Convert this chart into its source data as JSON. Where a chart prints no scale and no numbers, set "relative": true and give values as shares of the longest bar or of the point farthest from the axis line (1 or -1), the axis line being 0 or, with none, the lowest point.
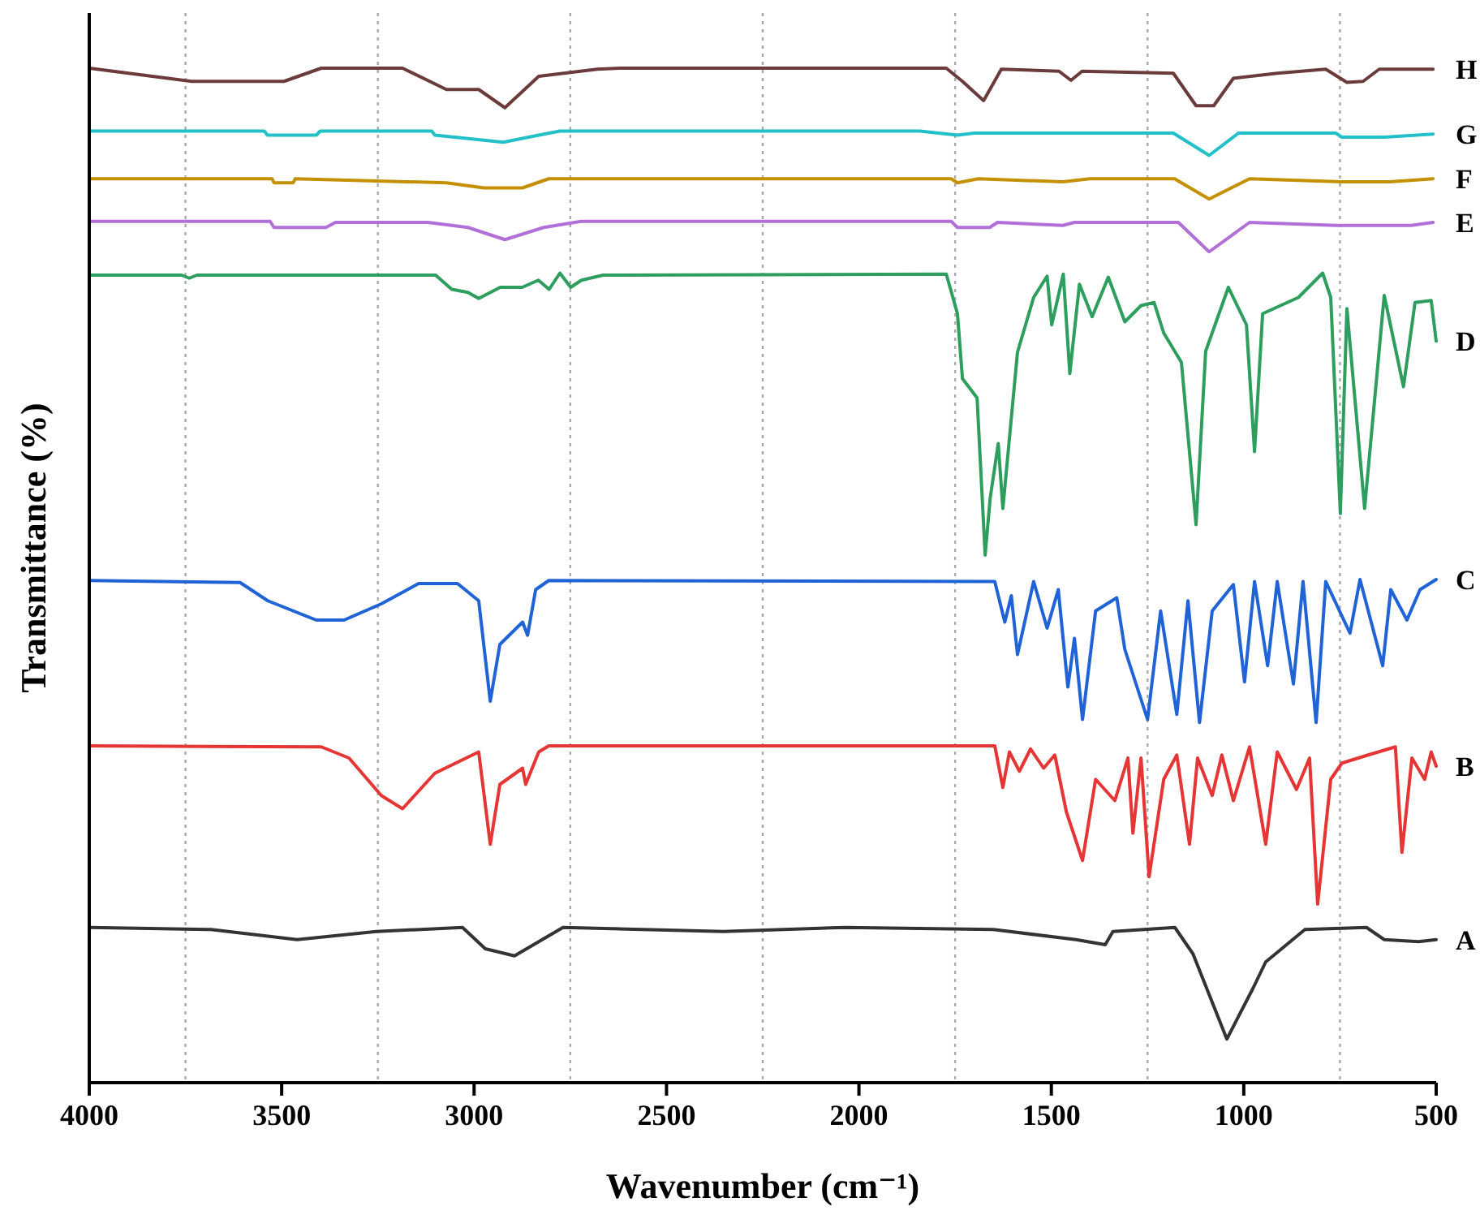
{
  "chart_data": {
    "type": "line",
    "relative": true,
    "xlabel": "Wavenumber (cm⁻¹)",
    "ylabel": "Transmittance (%)",
    "xlim": [
      4000,
      500
    ],
    "xticks": [
      4000,
      3500,
      3000,
      2500,
      2000,
      1500,
      1000,
      500
    ],
    "grid": false,
    "legend": false,
    "line_style": "solid",
    "ref_lines": [
      {
        "axis": "x",
        "value": 3750,
        "color": "#aaaaaa",
        "line_style": "dotted"
      },
      {
        "axis": "x",
        "value": 3250,
        "color": "#aaaaaa",
        "line_style": "dotted"
      },
      {
        "axis": "x",
        "value": 2750,
        "color": "#aaaaaa",
        "line_style": "dotted"
      },
      {
        "axis": "x",
        "value": 2250,
        "color": "#aaaaaa",
        "line_style": "dotted"
      },
      {
        "axis": "x",
        "value": 1750,
        "color": "#aaaaaa",
        "line_style": "dotted"
      },
      {
        "axis": "x",
        "value": 1250,
        "color": "#aaaaaa",
        "line_style": "dotted"
      },
      {
        "axis": "x",
        "value": 750,
        "color": "#aaaaaa",
        "line_style": "dotted"
      }
    ],
    "series": [
      {
        "name": "H",
        "color": "#6b3b3b",
        "x": [
          4000,
          3734,
          3494,
          3397,
          3186,
          3072,
          2988,
          2920,
          2832,
          2680,
          2621,
          1773,
          1731,
          1676,
          1630,
          1480,
          1449,
          1420,
          1183,
          1124,
          1078,
          1027,
          913,
          787,
          732,
          690,
          648,
          508
        ],
        "values": [
          1.0,
          0.987,
          0.987,
          1.0,
          1.0,
          0.979,
          0.979,
          0.961,
          0.992,
          0.999,
          1.0,
          1.0,
          0.987,
          0.968,
          0.999,
          0.997,
          0.988,
          0.997,
          0.995,
          0.963,
          0.963,
          0.99,
          0.995,
          0.999,
          0.986,
          0.987,
          0.999,
          0.999
        ]
      },
      {
        "name": "G",
        "color": "#22c0c8",
        "x": [
          4000,
          3545,
          3537,
          3410,
          3400,
          3110,
          3102,
          2924,
          2832,
          2777,
          1842,
          1744,
          1700,
          1183,
          1090,
          1014,
          761,
          745,
          635,
          508
        ],
        "values": [
          0.938,
          0.938,
          0.934,
          0.934,
          0.938,
          0.938,
          0.934,
          0.927,
          0.934,
          0.938,
          0.938,
          0.934,
          0.936,
          0.936,
          0.914,
          0.936,
          0.936,
          0.932,
          0.932,
          0.935
        ]
      },
      {
        "name": "F",
        "color": "#c49000",
        "x": [
          4000,
          3525,
          3520,
          3470,
          3465,
          3072,
          2975,
          2874,
          2806,
          1760,
          1744,
          1690,
          1470,
          1400,
          1180,
          1090,
          985,
          745,
          620,
          508
        ],
        "values": [
          0.891,
          0.891,
          0.887,
          0.887,
          0.891,
          0.887,
          0.882,
          0.882,
          0.891,
          0.891,
          0.887,
          0.891,
          0.888,
          0.891,
          0.891,
          0.871,
          0.891,
          0.888,
          0.888,
          0.891
        ]
      },
      {
        "name": "E",
        "color": "#b070d8",
        "x": [
          4000,
          3530,
          3520,
          3385,
          3360,
          3120,
          3016,
          2920,
          2819,
          2722,
          1760,
          1744,
          1660,
          1640,
          1470,
          1440,
          1170,
          1090,
          985,
          761,
          565,
          508
        ],
        "values": [
          0.849,
          0.849,
          0.843,
          0.843,
          0.848,
          0.848,
          0.843,
          0.831,
          0.843,
          0.849,
          0.849,
          0.843,
          0.843,
          0.848,
          0.845,
          0.848,
          0.848,
          0.819,
          0.848,
          0.845,
          0.845,
          0.848
        ]
      },
      {
        "name": "D",
        "color": "#2e9e5e",
        "x": [
          4000,
          3760,
          3740,
          3720,
          3100,
          3058,
          3016,
          2988,
          2932,
          2875,
          2833,
          2805,
          2777,
          2749,
          2721,
          2665,
          1773,
          1744,
          1731,
          1693,
          1672,
          1659,
          1638,
          1626,
          1588,
          1546,
          1511,
          1499,
          1469,
          1452,
          1427,
          1394,
          1352,
          1309,
          1267,
          1233,
          1208,
          1162,
          1124,
          1099,
          1040,
          993,
          972,
          951,
          858,
          795,
          774,
          749,
          732,
          686,
          635,
          585,
          555,
          513,
          500
        ],
        "values": [
          0.796,
          0.796,
          0.793,
          0.796,
          0.796,
          0.782,
          0.779,
          0.773,
          0.784,
          0.784,
          0.791,
          0.782,
          0.798,
          0.784,
          0.791,
          0.796,
          0.797,
          0.758,
          0.694,
          0.675,
          0.52,
          0.576,
          0.63,
          0.566,
          0.72,
          0.774,
          0.795,
          0.747,
          0.797,
          0.699,
          0.787,
          0.755,
          0.794,
          0.75,
          0.766,
          0.769,
          0.739,
          0.71,
          0.55,
          0.721,
          0.784,
          0.747,
          0.622,
          0.758,
          0.774,
          0.798,
          0.774,
          0.561,
          0.763,
          0.566,
          0.776,
          0.686,
          0.769,
          0.771,
          0.731
        ]
      },
      {
        "name": "C",
        "color": "#1f63d6",
        "x": [
          4000,
          3608,
          3536,
          3410,
          3338,
          3241,
          3144,
          3043,
          2988,
          2958,
          2933,
          2874,
          2861,
          2840,
          2806,
          1647,
          1621,
          1604,
          1588,
          1546,
          1511,
          1482,
          1457,
          1440,
          1419,
          1385,
          1330,
          1309,
          1250,
          1216,
          1174,
          1145,
          1115,
          1082,
          1027,
          998,
          972,
          938,
          913,
          871,
          846,
          812,
          787,
          724,
          698,
          639,
          618,
          576,
          542,
          500
        ],
        "values": [
          0.495,
          0.493,
          0.475,
          0.456,
          0.456,
          0.472,
          0.492,
          0.492,
          0.475,
          0.376,
          0.432,
          0.454,
          0.441,
          0.486,
          0.495,
          0.494,
          0.454,
          0.48,
          0.422,
          0.494,
          0.448,
          0.486,
          0.39,
          0.438,
          0.358,
          0.465,
          0.478,
          0.427,
          0.358,
          0.465,
          0.363,
          0.475,
          0.355,
          0.465,
          0.491,
          0.395,
          0.494,
          0.411,
          0.494,
          0.393,
          0.494,
          0.355,
          0.494,
          0.443,
          0.496,
          0.411,
          0.486,
          0.456,
          0.486,
          0.496
        ]
      },
      {
        "name": "B",
        "color": "#e53535",
        "x": [
          4000,
          3397,
          3325,
          3241,
          3186,
          3102,
          2988,
          2958,
          2933,
          2874,
          2866,
          2832,
          2806,
          1647,
          1626,
          1609,
          1583,
          1554,
          1520,
          1491,
          1461,
          1419,
          1385,
          1335,
          1301,
          1288,
          1267,
          1246,
          1208,
          1174,
          1141,
          1120,
          1082,
          1057,
          1027,
          985,
          943,
          913,
          863,
          829,
          808,
          774,
          745,
          677,
          606,
          589,
          563,
          530,
          513,
          500
        ],
        "values": [
          0.332,
          0.331,
          0.32,
          0.283,
          0.27,
          0.305,
          0.326,
          0.235,
          0.294,
          0.31,
          0.294,
          0.326,
          0.332,
          0.332,
          0.291,
          0.326,
          0.307,
          0.329,
          0.31,
          0.323,
          0.267,
          0.219,
          0.299,
          0.278,
          0.32,
          0.246,
          0.32,
          0.203,
          0.299,
          0.323,
          0.235,
          0.32,
          0.283,
          0.323,
          0.278,
          0.331,
          0.235,
          0.326,
          0.289,
          0.32,
          0.176,
          0.299,
          0.315,
          0.323,
          0.331,
          0.227,
          0.32,
          0.299,
          0.326,
          0.312
        ]
      },
      {
        "name": "A",
        "color": "#333333",
        "x": [
          4000,
          3684,
          3460,
          3254,
          3030,
          2971,
          2895,
          2769,
          2352,
          2035,
          1651,
          1436,
          1360,
          1340,
          1179,
          1132,
          1044,
          976,
          943,
          841,
          681,
          635,
          546,
          500
        ],
        "values": [
          0.153,
          0.151,
          0.141,
          0.149,
          0.153,
          0.132,
          0.125,
          0.153,
          0.149,
          0.153,
          0.151,
          0.141,
          0.136,
          0.149,
          0.153,
          0.127,
          0.043,
          0.093,
          0.119,
          0.151,
          0.153,
          0.141,
          0.139,
          0.141
        ]
      }
    ]
  }
}
